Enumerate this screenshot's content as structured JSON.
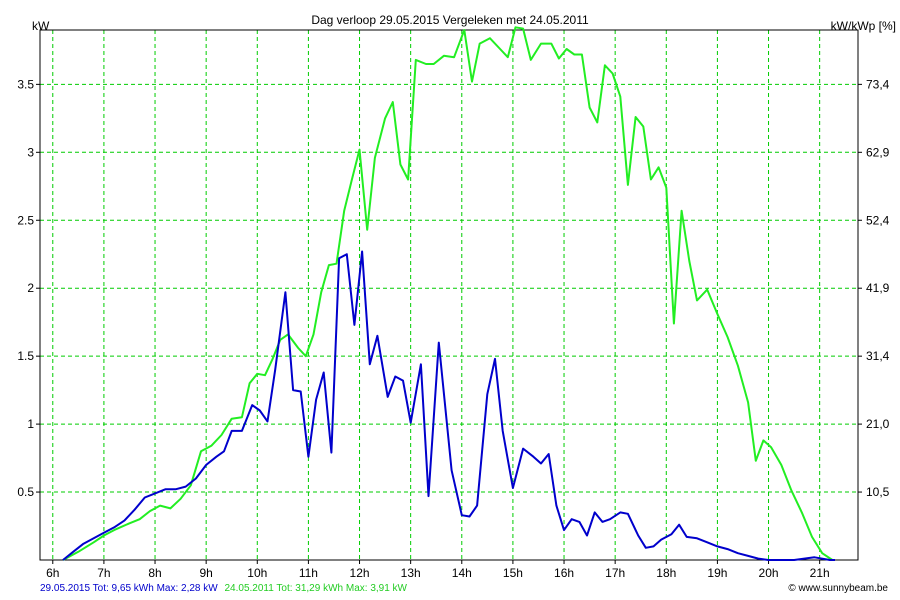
{
  "chart_data": {
    "type": "line",
    "title": "Dag  verloop 29.05.2015    Vergeleken met 24.05.2011",
    "ylabel_left": "kW",
    "ylabel_right": "kW/kWp [%]",
    "x_ticks": [
      "6h",
      "7h",
      "8h",
      "9h",
      "10h",
      "11h",
      "12h",
      "13h",
      "14h",
      "15h",
      "16h",
      "17h",
      "18h",
      "19h",
      "20h",
      "21h"
    ],
    "xlim": [
      5.75,
      21.75
    ],
    "ylim": [
      0,
      3.9
    ],
    "y_ticks": [
      0.5,
      1,
      1.5,
      2,
      2.5,
      3,
      3.5
    ],
    "y_tick_labels": [
      "0.5",
      "1",
      "1.5",
      "2",
      "2.5",
      "3",
      "3.5"
    ],
    "y_right_ticks": [
      0.5,
      1,
      1.5,
      2,
      2.5,
      3,
      3.5
    ],
    "y_right_tick_labels": [
      "10,5",
      "21,0",
      "31,4",
      "41,9",
      "52,4",
      "62,9",
      "73,4"
    ],
    "grid": true,
    "series": [
      {
        "name": "29.05.2015",
        "color": "#0000cc",
        "points": [
          [
            6.2,
            0
          ],
          [
            6.4,
            0.06
          ],
          [
            6.6,
            0.12
          ],
          [
            6.8,
            0.16
          ],
          [
            7.0,
            0.2
          ],
          [
            7.2,
            0.24
          ],
          [
            7.4,
            0.29
          ],
          [
            7.6,
            0.37
          ],
          [
            7.8,
            0.46
          ],
          [
            8.0,
            0.49
          ],
          [
            8.2,
            0.52
          ],
          [
            8.4,
            0.52
          ],
          [
            8.6,
            0.54
          ],
          [
            8.8,
            0.6
          ],
          [
            9.0,
            0.7
          ],
          [
            9.2,
            0.76
          ],
          [
            9.35,
            0.8
          ],
          [
            9.5,
            0.95
          ],
          [
            9.7,
            0.95
          ],
          [
            9.9,
            1.14
          ],
          [
            10.05,
            1.1
          ],
          [
            10.2,
            1.02
          ],
          [
            10.35,
            1.4
          ],
          [
            10.55,
            1.97
          ],
          [
            10.7,
            1.25
          ],
          [
            10.85,
            1.24
          ],
          [
            11.0,
            0.76
          ],
          [
            11.15,
            1.18
          ],
          [
            11.3,
            1.38
          ],
          [
            11.45,
            0.79
          ],
          [
            11.6,
            2.22
          ],
          [
            11.75,
            2.25
          ],
          [
            11.9,
            1.73
          ],
          [
            12.05,
            2.27
          ],
          [
            12.2,
            1.44
          ],
          [
            12.35,
            1.65
          ],
          [
            12.55,
            1.2
          ],
          [
            12.7,
            1.35
          ],
          [
            12.85,
            1.32
          ],
          [
            13.0,
            1.01
          ],
          [
            13.2,
            1.44
          ],
          [
            13.35,
            0.47
          ],
          [
            13.55,
            1.6
          ],
          [
            13.8,
            0.66
          ],
          [
            14.0,
            0.33
          ],
          [
            14.15,
            0.32
          ],
          [
            14.3,
            0.4
          ],
          [
            14.5,
            1.22
          ],
          [
            14.65,
            1.48
          ],
          [
            14.8,
            0.95
          ],
          [
            15.0,
            0.53
          ],
          [
            15.2,
            0.82
          ],
          [
            15.4,
            0.76
          ],
          [
            15.55,
            0.71
          ],
          [
            15.7,
            0.78
          ],
          [
            15.85,
            0.4
          ],
          [
            16.0,
            0.22
          ],
          [
            16.15,
            0.3
          ],
          [
            16.3,
            0.28
          ],
          [
            16.45,
            0.18
          ],
          [
            16.6,
            0.35
          ],
          [
            16.75,
            0.28
          ],
          [
            16.9,
            0.3
          ],
          [
            17.1,
            0.35
          ],
          [
            17.25,
            0.34
          ],
          [
            17.45,
            0.18
          ],
          [
            17.6,
            0.09
          ],
          [
            17.75,
            0.1
          ],
          [
            17.9,
            0.15
          ],
          [
            18.1,
            0.19
          ],
          [
            18.25,
            0.26
          ],
          [
            18.4,
            0.17
          ],
          [
            18.6,
            0.16
          ],
          [
            18.8,
            0.13
          ],
          [
            19.0,
            0.1
          ],
          [
            19.2,
            0.08
          ],
          [
            19.4,
            0.05
          ],
          [
            19.6,
            0.03
          ],
          [
            19.8,
            0.01
          ],
          [
            20.0,
            0.0
          ],
          [
            20.5,
            0.0
          ],
          [
            20.9,
            0.02
          ],
          [
            21.2,
            0.0
          ],
          [
            21.3,
            0.0
          ]
        ]
      },
      {
        "name": "24.05.2011",
        "color": "#22ee22",
        "points": [
          [
            6.2,
            0
          ],
          [
            6.5,
            0.06
          ],
          [
            6.8,
            0.13
          ],
          [
            7.0,
            0.18
          ],
          [
            7.2,
            0.22
          ],
          [
            7.5,
            0.27
          ],
          [
            7.7,
            0.3
          ],
          [
            7.9,
            0.36
          ],
          [
            8.1,
            0.4
          ],
          [
            8.3,
            0.38
          ],
          [
            8.5,
            0.45
          ],
          [
            8.7,
            0.55
          ],
          [
            8.9,
            0.8
          ],
          [
            9.1,
            0.84
          ],
          [
            9.3,
            0.92
          ],
          [
            9.5,
            1.04
          ],
          [
            9.7,
            1.05
          ],
          [
            9.85,
            1.3
          ],
          [
            10.0,
            1.37
          ],
          [
            10.15,
            1.36
          ],
          [
            10.3,
            1.48
          ],
          [
            10.45,
            1.62
          ],
          [
            10.6,
            1.66
          ],
          [
            10.8,
            1.56
          ],
          [
            10.95,
            1.5
          ],
          [
            11.1,
            1.66
          ],
          [
            11.25,
            1.97
          ],
          [
            11.4,
            2.17
          ],
          [
            11.55,
            2.18
          ],
          [
            11.7,
            2.57
          ],
          [
            11.85,
            2.8
          ],
          [
            12.0,
            3.02
          ],
          [
            12.15,
            2.43
          ],
          [
            12.3,
            2.96
          ],
          [
            12.5,
            3.25
          ],
          [
            12.65,
            3.37
          ],
          [
            12.8,
            2.91
          ],
          [
            12.95,
            2.8
          ],
          [
            13.1,
            3.68
          ],
          [
            13.3,
            3.65
          ],
          [
            13.45,
            3.65
          ],
          [
            13.65,
            3.71
          ],
          [
            13.85,
            3.7
          ],
          [
            14.05,
            3.9
          ],
          [
            14.2,
            3.52
          ],
          [
            14.35,
            3.8
          ],
          [
            14.55,
            3.84
          ],
          [
            14.75,
            3.76
          ],
          [
            14.9,
            3.7
          ],
          [
            15.05,
            3.92
          ],
          [
            15.2,
            3.91
          ],
          [
            15.35,
            3.68
          ],
          [
            15.55,
            3.8
          ],
          [
            15.75,
            3.8
          ],
          [
            15.9,
            3.69
          ],
          [
            16.05,
            3.76
          ],
          [
            16.2,
            3.72
          ],
          [
            16.35,
            3.72
          ],
          [
            16.5,
            3.33
          ],
          [
            16.65,
            3.22
          ],
          [
            16.8,
            3.64
          ],
          [
            16.95,
            3.58
          ],
          [
            17.1,
            3.41
          ],
          [
            17.25,
            2.76
          ],
          [
            17.4,
            3.26
          ],
          [
            17.55,
            3.19
          ],
          [
            17.7,
            2.8
          ],
          [
            17.85,
            2.89
          ],
          [
            18.0,
            2.74
          ],
          [
            18.15,
            1.74
          ],
          [
            18.3,
            2.57
          ],
          [
            18.45,
            2.2
          ],
          [
            18.6,
            1.91
          ],
          [
            18.8,
            1.99
          ],
          [
            19.0,
            1.81
          ],
          [
            19.2,
            1.64
          ],
          [
            19.4,
            1.43
          ],
          [
            19.6,
            1.16
          ],
          [
            19.75,
            0.73
          ],
          [
            19.9,
            0.88
          ],
          [
            20.05,
            0.83
          ],
          [
            20.25,
            0.7
          ],
          [
            20.45,
            0.51
          ],
          [
            20.65,
            0.35
          ],
          [
            20.85,
            0.17
          ],
          [
            21.05,
            0.05
          ],
          [
            21.25,
            0.0
          ]
        ]
      }
    ],
    "footer": {
      "series1_label": "29.05.2015 Tot: 9,65 kWh Max: 2,28 kW",
      "series2_label": "24.05.2011 Tot: 31,29 kWh Max: 3,91 kW",
      "credit": "© www.sunnybeam.be"
    }
  }
}
